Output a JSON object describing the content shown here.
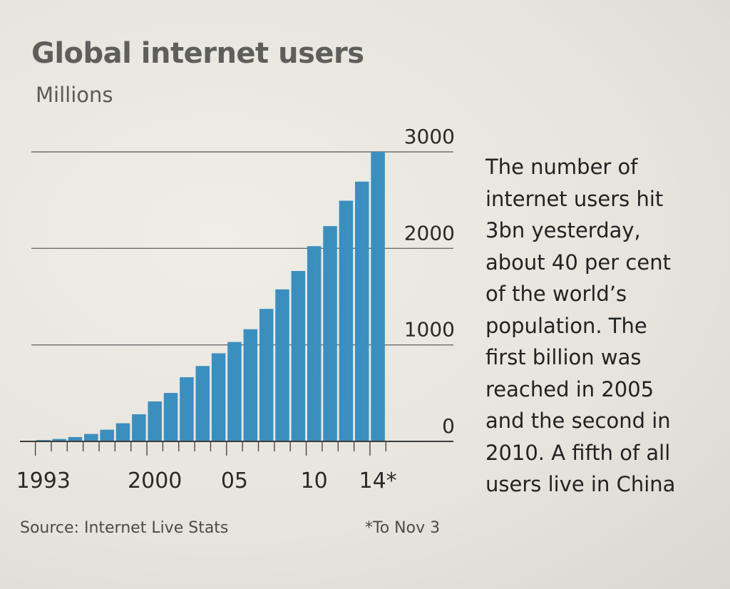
{
  "chart_data": {
    "type": "bar",
    "title": "Global internet users",
    "subtitle": "Millions",
    "categories": [
      "1993",
      "1994",
      "1995",
      "1996",
      "1997",
      "1998",
      "1999",
      "2000",
      "2001",
      "2002",
      "2003",
      "2004",
      "2005",
      "2006",
      "2007",
      "2008",
      "2009",
      "2010",
      "2011",
      "2012",
      "2013",
      "2014"
    ],
    "values": [
      14,
      25,
      45,
      77,
      121,
      188,
      281,
      414,
      502,
      665,
      781,
      913,
      1030,
      1162,
      1373,
      1575,
      1766,
      2023,
      2231,
      2494,
      2692,
      3000
    ],
    "ylim": [
      0,
      3000
    ],
    "yticks": [
      "0",
      "1000",
      "2000",
      "3000"
    ],
    "ytick_values": [
      0,
      1000,
      2000,
      3000
    ],
    "xtick_labels": [
      {
        "label": "1993",
        "category": "1993"
      },
      {
        "label": "2000",
        "category": "2000"
      },
      {
        "label": "05",
        "category": "2005"
      },
      {
        "label": "10",
        "category": "2010"
      },
      {
        "label": "14*",
        "category": "2014"
      }
    ],
    "grid": true,
    "bar_color": "#3a8fbf"
  },
  "annotation": {
    "lines": [
      "The number of",
      "internet users hit",
      "3bn yesterday,",
      "about 40 per cent",
      "of the world’s",
      "population. The",
      "first billion was",
      "reached in 2005",
      "and the second in",
      "2010. A fifth of all",
      "users live in China"
    ]
  },
  "footer": {
    "source": "Source: Internet Live Stats",
    "footnote": "*To Nov 3"
  }
}
